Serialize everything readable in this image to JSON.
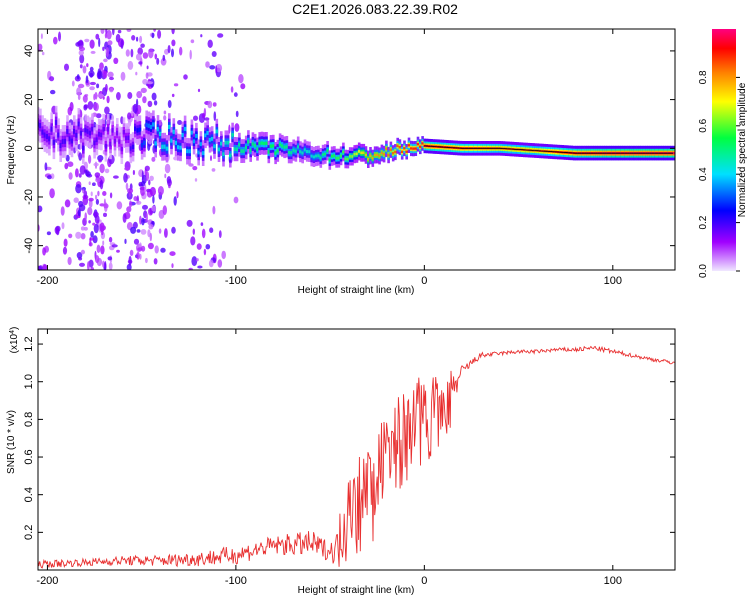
{
  "figure_title": "C2E1.2026.083.22.39.R02",
  "chart_data": [
    {
      "type": "heatmap",
      "name": "spectrogram",
      "title": "C2E1.2026.083.22.39.R02",
      "xlabel": "Height of straight line (km)",
      "ylabel": "Frequency (Hz)",
      "xlim": [
        -205,
        133
      ],
      "ylim": [
        -50,
        49
      ],
      "xticks": [
        -200,
        -100,
        0,
        100
      ],
      "yticks": [
        -40,
        -20,
        0,
        20,
        40
      ],
      "ridge": {
        "x": [
          -200,
          -180,
          -160,
          -140,
          -120,
          -100,
          -80,
          -60,
          -50,
          -40,
          -30,
          -20,
          -10,
          0,
          20,
          40,
          60,
          80,
          100,
          133
        ],
        "freq_hz": [
          6,
          5,
          4,
          5,
          3,
          1,
          0,
          -2,
          -3,
          -3,
          -3,
          -2,
          0,
          1,
          0,
          0,
          -1,
          -2,
          -2,
          -2
        ],
        "amplitude": [
          0.2,
          0.2,
          0.15,
          0.4,
          0.35,
          0.45,
          0.5,
          0.4,
          0.5,
          0.55,
          0.7,
          0.75,
          0.85,
          0.9,
          0.85,
          0.8,
          0.8,
          0.9,
          0.95,
          0.95
        ]
      },
      "colorbar": {
        "label": "Normalized spectral amplitude",
        "range": [
          0,
          1
        ],
        "ticks": [
          0.0,
          0.2,
          0.4,
          0.6,
          0.8
        ],
        "tick_labels": [
          "0.0",
          "0.2",
          "0.4",
          "0.6",
          "0.8"
        ],
        "colormap": [
          "#f0e8ff",
          "#a000ff",
          "#0000ff",
          "#00e0ff",
          "#00ff40",
          "#ffff00",
          "#ff8000",
          "#ff0000",
          "#ff0080"
        ]
      }
    },
    {
      "type": "line",
      "name": "snr",
      "title": "",
      "xlabel": "Height of straight line (km)",
      "ylabel": "SNR (10 * v/v)",
      "y_multiplier": "(x10^4)",
      "xlim": [
        -205,
        133
      ],
      "ylim": [
        0,
        1.28
      ],
      "xticks": [
        -200,
        -100,
        0,
        100
      ],
      "yticks": [
        0.2,
        0.4,
        0.6,
        0.8,
        1.0,
        1.2
      ],
      "ytick_labels": [
        "0.2",
        "0.4",
        "0.6",
        "0.8",
        "1.0",
        "1.2"
      ],
      "series": [
        {
          "name": "SNR",
          "color": "#e83030",
          "x": [
            -205,
            -180,
            -160,
            -140,
            -120,
            -100,
            -80,
            -60,
            -50,
            -45,
            -40,
            -35,
            -30,
            -25,
            -20,
            -15,
            -10,
            -5,
            0,
            5,
            10,
            15,
            20,
            25,
            30,
            40,
            50,
            60,
            70,
            80,
            90,
            100,
            110,
            120,
            133
          ],
          "y": [
            0.03,
            0.04,
            0.05,
            0.05,
            0.06,
            0.08,
            0.13,
            0.14,
            0.1,
            0.12,
            0.3,
            0.38,
            0.45,
            0.52,
            0.62,
            0.7,
            0.78,
            0.85,
            0.82,
            0.86,
            0.88,
            0.95,
            1.05,
            1.1,
            1.14,
            1.15,
            1.16,
            1.16,
            1.17,
            1.17,
            1.18,
            1.16,
            1.14,
            1.12,
            1.1
          ],
          "noise": [
            0.02,
            0.02,
            0.025,
            0.03,
            0.04,
            0.05,
            0.05,
            0.07,
            0.05,
            0.12,
            0.14,
            0.15,
            0.15,
            0.16,
            0.16,
            0.15,
            0.15,
            0.14,
            0.12,
            0.12,
            0.1,
            0.08,
            0.04,
            0.02,
            0.015,
            0.01,
            0.01,
            0.01,
            0.01,
            0.012,
            0.012,
            0.012,
            0.01,
            0.01,
            0.01
          ]
        }
      ]
    }
  ]
}
